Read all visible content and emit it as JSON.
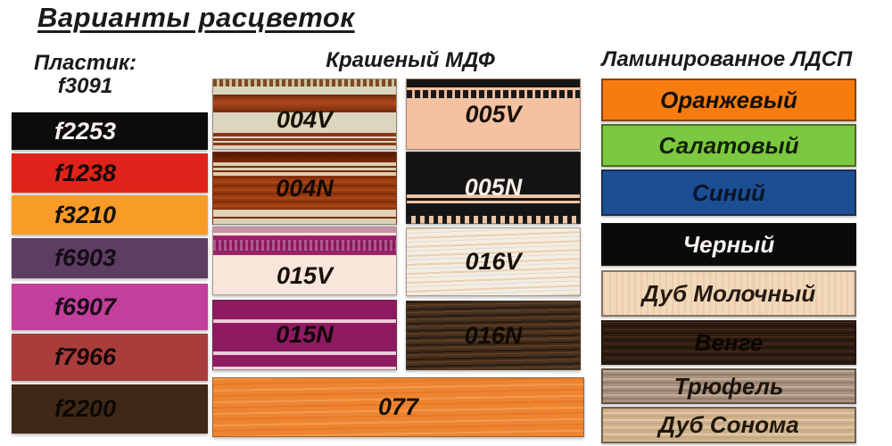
{
  "title": "Варианты расцветок",
  "plastic": {
    "header_line1": "Пластик:",
    "header_line2": "f3091",
    "items": [
      {
        "label": "f2253",
        "color": "#0d0b0c",
        "text_color": "#f5f2ee"
      },
      {
        "label": "f1238",
        "color": "#e0231a",
        "text_color": "#140808"
      },
      {
        "label": "f3210",
        "color": "#f99b27",
        "text_color": "#181006"
      },
      {
        "label": "f6903",
        "color": "#5e3d62",
        "text_color": "#140c16"
      },
      {
        "label": "f6907",
        "color": "#c23f9c",
        "text_color": "#1b0a16"
      },
      {
        "label": "f7966",
        "color": "#a83d3c",
        "text_color": "#180808"
      },
      {
        "label": "f2200",
        "color": "#3e2817",
        "text_color": "#0e0802"
      }
    ]
  },
  "mdf": {
    "header": "Крашеный МДФ",
    "items": [
      {
        "label": "004V",
        "color": "#dcd6bf",
        "text_color": "#181006"
      },
      {
        "label": "005V",
        "color": "#f4c1a3",
        "text_color": "#181006"
      },
      {
        "label": "004N",
        "color": "#9b3a10",
        "text_color": "#140a04"
      },
      {
        "label": "005N",
        "color": "#141414",
        "text_color": "#f7ede4"
      },
      {
        "label": "015V",
        "color": "#f8e6da",
        "text_color": "#181006"
      },
      {
        "label": "016V",
        "color": "#f4ede1",
        "text_color": "#181006"
      },
      {
        "label": "015N",
        "color": "#8e1a62",
        "text_color": "#140408"
      },
      {
        "label": "016N",
        "color": "#46301f",
        "text_color": "#0f0903"
      },
      {
        "label": "077",
        "color": "#ee8430",
        "text_color": "#181006"
      }
    ]
  },
  "ldsp": {
    "header": "Ламинированное ЛДСП",
    "items": [
      {
        "label": "Оранжевый",
        "color": "#f77c10",
        "text_color": "#171007"
      },
      {
        "label": "Салатовый",
        "color": "#7cc941",
        "text_color": "#12200a"
      },
      {
        "label": "Синий",
        "color": "#1c4e93",
        "text_color": "#0a1524"
      },
      {
        "label": "Черный",
        "color": "#0b0a0a",
        "text_color": "#f5f2ef"
      },
      {
        "label": "Дуб Молочный",
        "color": "#f2d9bc",
        "text_color": "#251a10"
      },
      {
        "label": "Венге",
        "color": "#2f1d12",
        "text_color": "#0c0602"
      },
      {
        "label": "Трюфель",
        "color": "#a8927e",
        "text_color": "#1d140c"
      },
      {
        "label": "Дуб Сонома",
        "color": "#ceb28d",
        "text_color": "#21170a"
      }
    ]
  }
}
